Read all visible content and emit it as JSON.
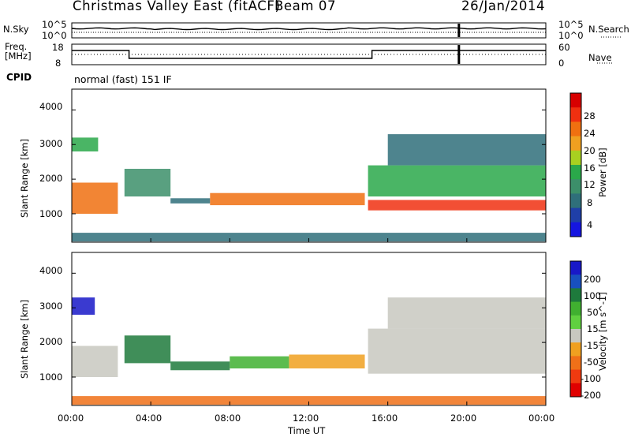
{
  "header": {
    "title": "Christmas Valley East (fitACF)",
    "beam": "Beam 07",
    "date": "26/Jan/2014"
  },
  "noise_panel": {
    "left_label": "N.Sky",
    "right_label": "N.Search",
    "left_ticks": [
      "10^5",
      "10^0"
    ],
    "right_ticks": [
      "10^5",
      "10^0"
    ]
  },
  "freq_panel": {
    "left_label_1": "Freq.",
    "left_label_2": "[MHz]",
    "right_label": "Nave",
    "left_ticks": [
      "18",
      "8"
    ],
    "right_ticks": [
      "60",
      "0"
    ]
  },
  "cpid": {
    "label": "CPID",
    "value": "normal (fast) 151 IF"
  },
  "colors": {
    "power_scale": [
      "#1515e0",
      "#1f3fa8",
      "#2f6f7a",
      "#3c8f6a",
      "#2aa84a",
      "#a8d020",
      "#f0a020",
      "#f07010",
      "#f03010",
      "#d80000"
    ],
    "velocity_scale": [
      "#1818c8",
      "#1850c0",
      "#1e7a3c",
      "#40b030",
      "#60d040",
      "#c8c8c0",
      "#f0a020",
      "#f07018",
      "#f03a10",
      "#e00000"
    ]
  },
  "chart_data": [
    {
      "type": "heatmap",
      "title": "",
      "quantity": "Power",
      "ylabel": "Slant Range [km]",
      "ylim": [
        180,
        4600
      ],
      "yticks": [
        "1000",
        "2000",
        "3000",
        "4000"
      ],
      "colorbar_label": "Power [dB]",
      "colorbar_ticks": [
        "4",
        "8",
        "12",
        "16",
        "20",
        "24",
        "28"
      ],
      "colorbar_range": [
        0,
        32
      ],
      "x_ticks": [
        "00:00",
        "04:00",
        "08:00",
        "12:00",
        "16:00",
        "20:00",
        "00:00"
      ],
      "scatter_echo_bands": [
        {
          "t_start": "00:00",
          "t_end": "02:20",
          "range_low_km": 1000,
          "range_high_km": 1900,
          "power_dB": 24
        },
        {
          "t_start": "00:00",
          "t_end": "01:20",
          "range_low_km": 2800,
          "range_high_km": 3200,
          "power_dB": 14
        },
        {
          "t_start": "02:40",
          "t_end": "05:00",
          "range_low_km": 1500,
          "range_high_km": 2300,
          "power_dB": 10
        },
        {
          "t_start": "05:00",
          "t_end": "07:00",
          "range_low_km": 1300,
          "range_high_km": 1450,
          "power_dB": 6
        },
        {
          "t_start": "07:00",
          "t_end": "14:50",
          "range_low_km": 1250,
          "range_high_km": 1600,
          "power_dB": 24
        },
        {
          "t_start": "15:00",
          "t_end": "24:00",
          "range_low_km": 1100,
          "range_high_km": 1400,
          "power_dB": 28
        },
        {
          "t_start": "15:00",
          "t_end": "24:00",
          "range_low_km": 1500,
          "range_high_km": 2400,
          "power_dB": 14
        },
        {
          "t_start": "16:00",
          "t_end": "24:00",
          "range_low_km": 2400,
          "range_high_km": 3300,
          "power_dB": 8
        },
        {
          "t_start": "00:00",
          "t_end": "24:00",
          "range_low_km": 200,
          "range_high_km": 450,
          "power_dB": 6
        }
      ]
    },
    {
      "type": "heatmap",
      "title": "",
      "quantity": "Velocity",
      "xlabel": "Time UT",
      "ylabel": "Slant Range [km]",
      "ylim": [
        180,
        4600
      ],
      "yticks": [
        "1000",
        "2000",
        "3000",
        "4000"
      ],
      "colorbar_label": "Velocity [m s^-1]",
      "colorbar_ticks": [
        "200",
        "100",
        "50",
        "15",
        "-15",
        "-50",
        "-100",
        "-200"
      ],
      "colorbar_range": [
        250,
        -250
      ],
      "x_ticks": [
        "00:00",
        "04:00",
        "08:00",
        "12:00",
        "16:00",
        "20:00",
        "00:00"
      ],
      "scatter_echo_bands": [
        {
          "t_start": "00:00",
          "t_end": "01:10",
          "range_low_km": 2800,
          "range_high_km": 3300,
          "velocity_ms": 200
        },
        {
          "t_start": "00:00",
          "t_end": "02:20",
          "range_low_km": 1000,
          "range_high_km": 1900,
          "velocity_ms": 0
        },
        {
          "t_start": "02:40",
          "t_end": "05:00",
          "range_low_km": 1400,
          "range_high_km": 2200,
          "velocity_ms": 60
        },
        {
          "t_start": "05:00",
          "t_end": "08:00",
          "range_low_km": 1200,
          "range_high_km": 1450,
          "velocity_ms": 70
        },
        {
          "t_start": "08:00",
          "t_end": "11:00",
          "range_low_km": 1250,
          "range_high_km": 1600,
          "velocity_ms": 40
        },
        {
          "t_start": "11:00",
          "t_end": "14:50",
          "range_low_km": 1250,
          "range_high_km": 1650,
          "velocity_ms": -40
        },
        {
          "t_start": "15:00",
          "t_end": "24:00",
          "range_low_km": 1100,
          "range_high_km": 2400,
          "velocity_ms": 0
        },
        {
          "t_start": "16:00",
          "t_end": "24:00",
          "range_low_km": 2400,
          "range_high_km": 3300,
          "velocity_ms": 0
        },
        {
          "t_start": "00:00",
          "t_end": "24:00",
          "range_low_km": 200,
          "range_high_km": 450,
          "velocity_ms": -60
        }
      ]
    }
  ]
}
